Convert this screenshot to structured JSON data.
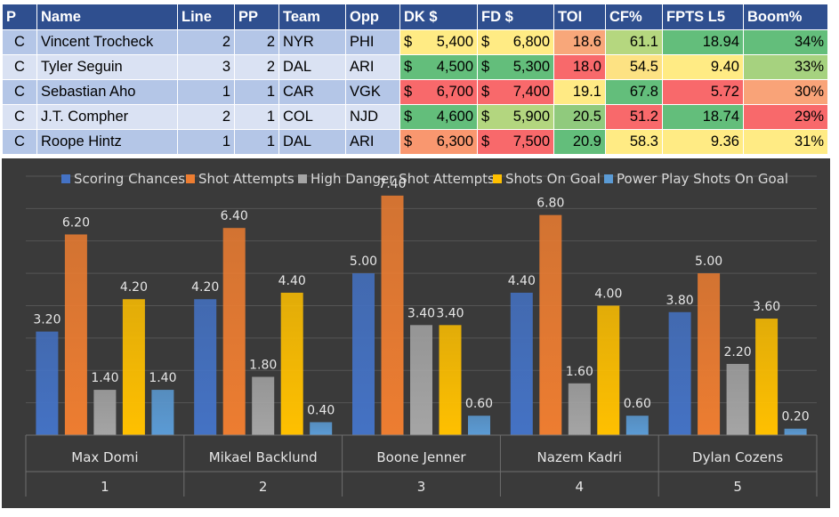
{
  "table": {
    "headers": [
      "P",
      "Name",
      "Line",
      "PP",
      "Team",
      "Opp",
      "DK $",
      "FD $",
      "TOI",
      "CF%",
      "FPTS L5",
      "Boom%"
    ],
    "rows": [
      {
        "p": "C",
        "name": "Vincent Trocheck",
        "line": "2",
        "pp": "2",
        "team": "NYR",
        "opp": "PHI",
        "dk_sign": "$",
        "dk": "5,400",
        "fd_sign": "$",
        "fd": "6,800",
        "toi": "18.6",
        "cf": "61.1",
        "fpts": "18.94",
        "boom": "34%"
      },
      {
        "p": "C",
        "name": "Tyler Seguin",
        "line": "3",
        "pp": "2",
        "team": "DAL",
        "opp": "ARI",
        "dk_sign": "$",
        "dk": "4,500",
        "fd_sign": "$",
        "fd": "5,300",
        "toi": "18.0",
        "cf": "54.5",
        "fpts": "9.40",
        "boom": "33%"
      },
      {
        "p": "C",
        "name": "Sebastian Aho",
        "line": "1",
        "pp": "1",
        "team": "CAR",
        "opp": "VGK",
        "dk_sign": "$",
        "dk": "6,700",
        "fd_sign": "$",
        "fd": "7,400",
        "toi": "19.1",
        "cf": "67.8",
        "fpts": "5.72",
        "boom": "30%"
      },
      {
        "p": "C",
        "name": "J.T. Compher",
        "line": "2",
        "pp": "1",
        "team": "COL",
        "opp": "NJD",
        "dk_sign": "$",
        "dk": "4,600",
        "fd_sign": "$",
        "fd": "5,900",
        "toi": "20.5",
        "cf": "51.2",
        "fpts": "18.74",
        "boom": "29%"
      },
      {
        "p": "C",
        "name": "Roope Hintz",
        "line": "1",
        "pp": "1",
        "team": "DAL",
        "opp": "ARI",
        "dk_sign": "$",
        "dk": "6,300",
        "fd_sign": "$",
        "fd": "7,500",
        "toi": "20.9",
        "cf": "58.3",
        "fpts": "9.36",
        "boom": "31%"
      }
    ],
    "heat_colors": [
      {
        "dk": "#ffeb84",
        "fd": "#ffeb84",
        "toi": "#f8a77a",
        "cf": "#b5d77f",
        "fpts": "#63be7b",
        "boom": "#63be7b"
      },
      {
        "dk": "#63be7b",
        "fd": "#63be7b",
        "toi": "#f8696b",
        "cf": "#fde283",
        "fpts": "#ffeb84",
        "boom": "#a6d27f"
      },
      {
        "dk": "#f8696b",
        "fd": "#f8696b",
        "toi": "#ffea84",
        "cf": "#63be7b",
        "fpts": "#f8696b",
        "boom": "#f9a378"
      },
      {
        "dk": "#63be7b",
        "fd": "#b3d67f",
        "toi": "#90ca7d",
        "cf": "#f8696b",
        "fpts": "#63be7b",
        "boom": "#f8696b"
      },
      {
        "dk": "#f9976f",
        "fd": "#f8696b",
        "toi": "#63be7b",
        "cf": "#ffeb84",
        "fpts": "#ffeb84",
        "boom": "#ffeb84"
      }
    ]
  },
  "chart_data": {
    "type": "bar",
    "categories": [
      {
        "name": "Max Domi",
        "rank": "1"
      },
      {
        "name": "Mikael Backlund",
        "rank": "2"
      },
      {
        "name": "Boone Jenner",
        "rank": "3"
      },
      {
        "name": "Nazem Kadri",
        "rank": "4"
      },
      {
        "name": "Dylan Cozens",
        "rank": "5"
      }
    ],
    "series": [
      {
        "name": "Scoring Chances",
        "color": "#4472c4",
        "values": [
          3.2,
          4.2,
          5.0,
          4.4,
          3.8
        ],
        "labels": [
          "3.20",
          "4.20",
          "5.00",
          "4.40",
          "3.80"
        ]
      },
      {
        "name": "Shot Attempts",
        "color": "#ed7d31",
        "values": [
          6.2,
          6.4,
          7.4,
          6.8,
          5.0
        ],
        "labels": [
          "6.20",
          "6.40",
          "7.40",
          "6.80",
          "5.00"
        ]
      },
      {
        "name": "High Danger Shot Attempts",
        "color": "#a5a5a5",
        "values": [
          1.4,
          1.8,
          3.4,
          1.6,
          2.2
        ],
        "labels": [
          "1.40",
          "1.80",
          "3.40",
          "1.60",
          "2.20"
        ]
      },
      {
        "name": "Shots On Goal",
        "color": "#ffc000",
        "values": [
          4.2,
          4.4,
          3.4,
          4.0,
          3.6
        ],
        "labels": [
          "4.20",
          "4.40",
          "3.40",
          "4.00",
          "3.60"
        ]
      },
      {
        "name": "Power Play Shots On Goal",
        "color": "#5b9bd5",
        "values": [
          1.4,
          0.4,
          0.6,
          0.6,
          0.2
        ],
        "labels": [
          "1.40",
          "0.40",
          "0.60",
          "0.60",
          "0.20"
        ]
      }
    ],
    "ylim": [
      0,
      8
    ],
    "grid": true,
    "legend_position": "top"
  }
}
